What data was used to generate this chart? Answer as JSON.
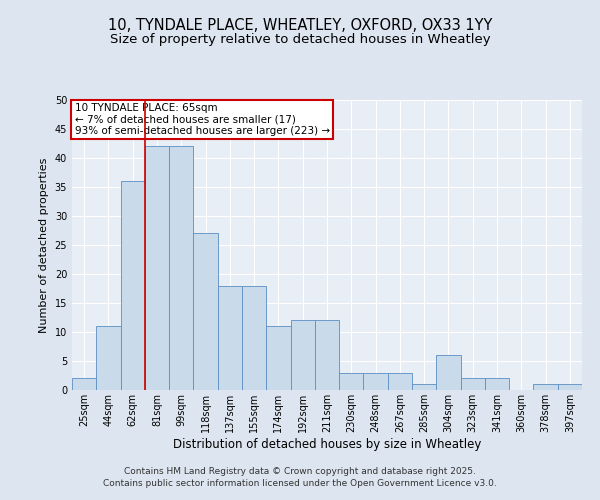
{
  "title": "10, TYNDALE PLACE, WHEATLEY, OXFORD, OX33 1YY",
  "subtitle": "Size of property relative to detached houses in Wheatley",
  "xlabel": "Distribution of detached houses by size in Wheatley",
  "ylabel": "Number of detached properties",
  "footer_line1": "Contains HM Land Registry data © Crown copyright and database right 2025.",
  "footer_line2": "Contains public sector information licensed under the Open Government Licence v3.0.",
  "annotation_line1": "10 TYNDALE PLACE: 65sqm",
  "annotation_line2": "← 7% of detached houses are smaller (17)",
  "annotation_line3": "93% of semi-detached houses are larger (223) →",
  "bar_labels": [
    "25sqm",
    "44sqm",
    "62sqm",
    "81sqm",
    "99sqm",
    "118sqm",
    "137sqm",
    "155sqm",
    "174sqm",
    "192sqm",
    "211sqm",
    "230sqm",
    "248sqm",
    "267sqm",
    "285sqm",
    "304sqm",
    "323sqm",
    "341sqm",
    "360sqm",
    "378sqm",
    "397sqm"
  ],
  "bar_values": [
    2,
    11,
    36,
    42,
    42,
    27,
    18,
    18,
    11,
    12,
    12,
    3,
    3,
    3,
    1,
    6,
    2,
    2,
    0,
    1,
    1
  ],
  "bar_color": "#c9daea",
  "bar_edge_color": "#5a8fc3",
  "red_line_index": 2,
  "red_line_color": "#cc0000",
  "annotation_box_color": "#cc0000",
  "background_color": "#dde6f0",
  "plot_bg_color": "#e8eef5",
  "ylim": [
    0,
    50
  ],
  "yticks": [
    0,
    5,
    10,
    15,
    20,
    25,
    30,
    35,
    40,
    45,
    50
  ],
  "title_fontsize": 10.5,
  "subtitle_fontsize": 9.5,
  "xlabel_fontsize": 8.5,
  "ylabel_fontsize": 8,
  "tick_fontsize": 7,
  "footer_fontsize": 6.5,
  "annotation_fontsize": 7.5
}
